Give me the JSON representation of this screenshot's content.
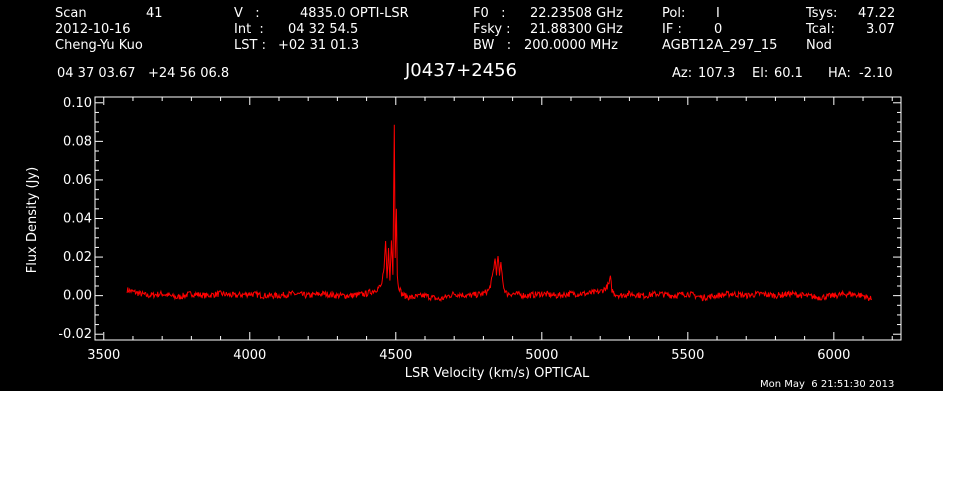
{
  "header": {
    "scan_label": "Scan",
    "scan_value": "41",
    "date": "2012-10-16",
    "observer": "Cheng-Yu Kuo",
    "v_label": "V   :",
    "v_value": "4835.0 OPTI-LSR",
    "int_label": "Int  :",
    "int_value": "04 32 54.5",
    "lst_label": "LST :",
    "lst_value": "+02 31 01.3",
    "f0_label": "F0   :",
    "f0_value": "22.23508 GHz",
    "fsky_label": "Fsky :",
    "fsky_value": "21.88300 GHz",
    "bw_label": "BW   :",
    "bw_value": "200.0000 MHz",
    "pol_label": "Pol:",
    "pol_value": "I",
    "if_label": "IF :",
    "if_value": "0",
    "project": "AGBT12A_297_15",
    "tsys_label": "Tsys:",
    "tsys_value": "47.22",
    "tcal_label": "Tcal:",
    "tcal_value": "3.07",
    "mode": "Nod",
    "coords": "04 37 03.67   +24 56 06.8",
    "source": "J0437+2456",
    "az_label": "Az:",
    "az_value": "107.3",
    "el_label": "El:",
    "el_value": "60.1",
    "ha_label": "HA:",
    "ha_value": "-2.10",
    "timestamp": "Mon May  6 21:51:30 2013"
  },
  "chart_data": {
    "type": "line",
    "title": "J0437+2456",
    "xlabel": "LSR Velocity (km/s) OPTICAL",
    "ylabel": "Flux Density (Jy)",
    "xlim": [
      3470,
      6230
    ],
    "ylim": [
      -0.023,
      0.103
    ],
    "xticks": [
      3500,
      4000,
      4500,
      5000,
      5500,
      6000
    ],
    "yticks": [
      -0.02,
      0.0,
      0.02,
      0.04,
      0.06,
      0.08,
      0.1
    ],
    "ytick_labels": [
      "-0.02",
      "0.00",
      "0.02",
      "0.04",
      "0.06",
      "0.08",
      "0.10"
    ],
    "grid": false,
    "series_color": "#ff0000",
    "axis_color": "#ffffff",
    "background": "#000000",
    "series": [
      {
        "x": [
          3580,
          3600,
          3650,
          3700,
          3750,
          3800,
          3850,
          3900,
          3950,
          4000,
          4050,
          4100,
          4150,
          4200,
          4250,
          4300,
          4350,
          4400,
          4430,
          4450,
          4460,
          4465,
          4470,
          4475,
          4480,
          4485,
          4490,
          4495,
          4498,
          4502,
          4505,
          4510,
          4515,
          4520,
          4530,
          4550,
          4600,
          4650,
          4700,
          4750,
          4800,
          4820,
          4830,
          4840,
          4845,
          4850,
          4855,
          4860,
          4870,
          4880,
          4900,
          4950,
          5000,
          5050,
          5100,
          5150,
          5200,
          5220,
          5230,
          5235,
          5240,
          5250,
          5270,
          5300,
          5350,
          5400,
          5450,
          5500,
          5550,
          5600,
          5650,
          5700,
          5750,
          5800,
          5850,
          5900,
          5950,
          6000,
          6050,
          6100,
          6130
        ],
        "y": [
          0.003,
          0.002,
          0.0,
          0.001,
          -0.001,
          0.001,
          0.0,
          0.001,
          0.0,
          0.001,
          0.0,
          0.0,
          0.001,
          0.0,
          0.001,
          0.0,
          0.0,
          0.001,
          0.003,
          0.005,
          0.013,
          0.028,
          0.01,
          0.024,
          0.008,
          0.029,
          0.012,
          0.09,
          0.02,
          0.046,
          0.01,
          0.005,
          0.003,
          0.001,
          0.0,
          -0.001,
          0.0,
          -0.002,
          0.001,
          0.0,
          0.001,
          0.003,
          0.009,
          0.019,
          0.012,
          0.02,
          0.011,
          0.016,
          0.004,
          0.001,
          0.001,
          0.0,
          0.001,
          0.0,
          0.001,
          0.001,
          0.002,
          0.004,
          0.006,
          0.009,
          0.003,
          0.001,
          0.0,
          0.001,
          0.0,
          0.001,
          0.0,
          0.001,
          -0.001,
          0.0,
          0.001,
          0.0,
          0.001,
          0.0,
          0.001,
          0.0,
          -0.001,
          0.0,
          0.001,
          0.0,
          -0.002
        ]
      }
    ]
  }
}
